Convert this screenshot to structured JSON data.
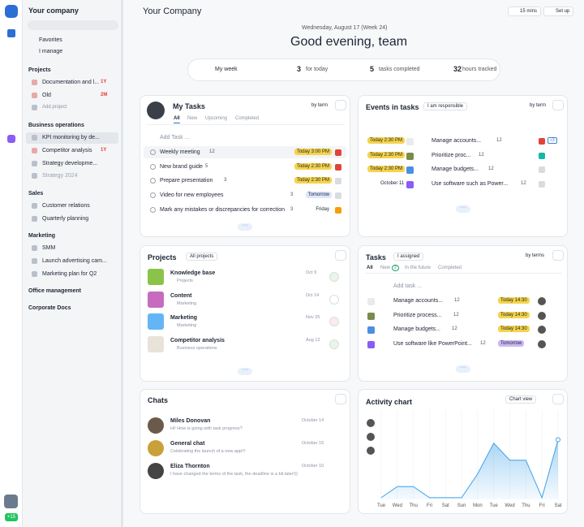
{
  "sidebar": {
    "company": "Your company",
    "favorites": "Favorites",
    "i_manage": "I manage",
    "sections": [
      {
        "title": "Projects",
        "items": [
          {
            "label": "Documentation and l...",
            "badge": "1Y"
          },
          {
            "label": "Old",
            "badge": "2M"
          },
          {
            "label": "Add project"
          }
        ]
      },
      {
        "title": "Business operations",
        "items": [
          {
            "label": "KPI monitoring by de..."
          },
          {
            "label": "Competitor analysis",
            "badge": "1Y"
          },
          {
            "label": "Strategy developme..."
          },
          {
            "label": "Strategy 2024"
          }
        ]
      },
      {
        "title": "Sales",
        "items": [
          {
            "label": "Customer relations"
          },
          {
            "label": "Quarterly planning"
          }
        ]
      },
      {
        "title": "Marketing",
        "items": [
          {
            "label": "SMM"
          },
          {
            "label": "Launch advertising cam..."
          },
          {
            "label": "Marketing plan for Q2"
          }
        ]
      },
      {
        "title": "Office management",
        "items": []
      },
      {
        "title": "Corporate Docs",
        "items": []
      }
    ],
    "user_badge": "+15"
  },
  "header": {
    "title": "Your Company",
    "timer": "15 mins",
    "setup": "Set up",
    "date": "Wednesday, August 17 (Week 24)",
    "greeting": "Good evening, team"
  },
  "stats": {
    "period": "My week",
    "items": [
      {
        "number": 3,
        "label": "for today"
      },
      {
        "number": 5,
        "label": "tasks completed"
      },
      {
        "number": 32,
        "label": "hours tracked"
      }
    ]
  },
  "my_tasks": {
    "title": "My Tasks",
    "sort": "by term",
    "tabs": [
      "All",
      "New",
      "Upcoming",
      "Completed"
    ],
    "add": "Add Task ...",
    "rows": [
      {
        "name": "Weekly meeting",
        "count": 12,
        "due": "Today 3:00 PM"
      },
      {
        "name": "New brand guide",
        "count": 5,
        "due": "Today 2:30 PM"
      },
      {
        "name": "Prepare presentation",
        "count": 3,
        "due": "Today 2:30 PM"
      },
      {
        "name": "Video for new employees",
        "count": 3,
        "due": "Tomorrow"
      },
      {
        "name": "Mark any mistakes or discrepancies for correction",
        "count": 3,
        "due": "Friday"
      }
    ]
  },
  "events": {
    "title": "Events in tasks",
    "filter": "I am responsible",
    "sort": "by term",
    "extra": "+3",
    "rows": [
      {
        "due": "Today 2:30 PM",
        "name": "Manage accounts...",
        "count": 12
      },
      {
        "due": "Today 2:30 PM",
        "name": "Prioritize proc...",
        "count": 12
      },
      {
        "due": "Today 2:30 PM",
        "name": "Manage budgets...",
        "count": 12
      },
      {
        "due": "October 11",
        "name": "Use software such as Power...",
        "count": 12
      }
    ]
  },
  "projects": {
    "title": "Projects",
    "filter": "All projects",
    "rows": [
      {
        "name": "Knowledge base",
        "folder": "Projects",
        "date": "Oct 9"
      },
      {
        "name": "Content",
        "folder": "Marketing",
        "date": "Oct 14"
      },
      {
        "name": "Marketing",
        "folder": "Marketing",
        "date": "Nov 26"
      },
      {
        "name": "Competitor analysis",
        "folder": "Business operations",
        "date": "Aug 12"
      }
    ]
  },
  "tasks": {
    "title": "Tasks",
    "filter": "I assigned",
    "sort": "by terms",
    "tabs": [
      "All",
      "New",
      "In the future",
      "Completed"
    ],
    "new_count": 2,
    "add": "Add task ...",
    "rows": [
      {
        "name": "Manage accounts...",
        "count": 12,
        "due": "Today 14:30"
      },
      {
        "name": "Prioritize process...",
        "count": 12,
        "due": "Today 14:30"
      },
      {
        "name": "Manage budgets...",
        "count": 12,
        "due": "Today 14:30"
      },
      {
        "name": "Use software like PowerPoint...",
        "count": 12,
        "due": "Tomorrow"
      }
    ]
  },
  "chats": {
    "title": "Chats",
    "rows": [
      {
        "name": "Miles Donovan",
        "message": "Hi! How is going with task progress?",
        "date": "October 14"
      },
      {
        "name": "General chat",
        "message": "Celebrating the launch of a new app!!!",
        "date": "October 15"
      },
      {
        "name": "Eliza Thornton",
        "message": "I have changed the terms of the task, the deadline is a bit later!))",
        "date": "October 10"
      }
    ]
  },
  "chart_data": {
    "type": "area",
    "title": "Activity chart",
    "view": "Chart view",
    "categories": [
      "Tue",
      "Wed",
      "Thu",
      "Fri",
      "Sat",
      "Sun",
      "Mon",
      "Tue",
      "Wed",
      "Thu",
      "Fri",
      "Sat"
    ],
    "values": [
      2,
      15,
      15,
      2,
      2,
      2,
      30,
      66,
      46,
      46,
      2,
      70
    ],
    "ylim": [
      0,
      100
    ],
    "color": "#3ea0e8"
  }
}
